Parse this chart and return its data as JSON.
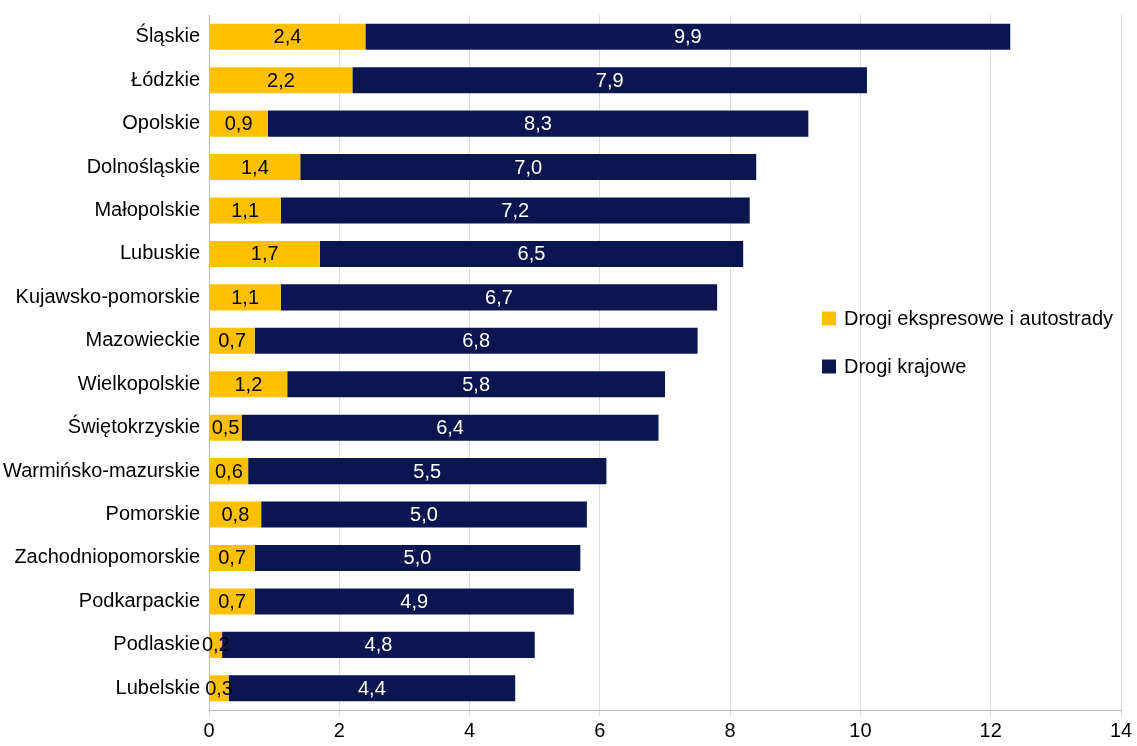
{
  "chart_data": {
    "type": "bar",
    "orientation": "horizontal",
    "stacked": true,
    "categories": [
      "Śląskie",
      "Łódzkie",
      "Opolskie",
      "Dolnośląskie",
      "Małopolskie",
      "Lubuskie",
      "Kujawsko-pomorskie",
      "Mazowieckie",
      "Wielkopolskie",
      "Świętokrzyskie",
      "Warmińsko-mazurskie",
      "Pomorskie",
      "Zachodniopomorskie",
      "Podkarpackie",
      "Podlaskie",
      "Lubelskie"
    ],
    "series": [
      {
        "name": "Drogi ekspresowe i autostrady",
        "color": "#ffc000",
        "values": [
          2.4,
          2.2,
          0.9,
          1.4,
          1.1,
          1.7,
          1.1,
          0.7,
          1.2,
          0.5,
          0.6,
          0.8,
          0.7,
          0.7,
          0.2,
          0.3
        ],
        "value_labels": [
          "2,4",
          "2,2",
          "0,9",
          "1,4",
          "1,1",
          "1,7",
          "1,1",
          "0,7",
          "1,2",
          "0,5",
          "0,6",
          "0,8",
          "0,7",
          "0,7",
          "0,2",
          "0,3"
        ]
      },
      {
        "name": "Drogi krajowe",
        "color": "#0b1650",
        "values": [
          9.9,
          7.9,
          8.3,
          7.0,
          7.2,
          6.5,
          6.7,
          6.8,
          5.8,
          6.4,
          5.5,
          5.0,
          5.0,
          4.9,
          4.8,
          4.4
        ],
        "value_labels": [
          "9,9",
          "7,9",
          "8,3",
          "7,0",
          "7,2",
          "6,5",
          "6,7",
          "6,8",
          "5,8",
          "6,4",
          "5,5",
          "5,0",
          "5,0",
          "4,9",
          "4,8",
          "4,4"
        ]
      }
    ],
    "xlim": [
      0,
      14
    ],
    "xticks": [
      0,
      2,
      4,
      6,
      8,
      10,
      12,
      14
    ],
    "grid": "x",
    "legend": "right"
  }
}
